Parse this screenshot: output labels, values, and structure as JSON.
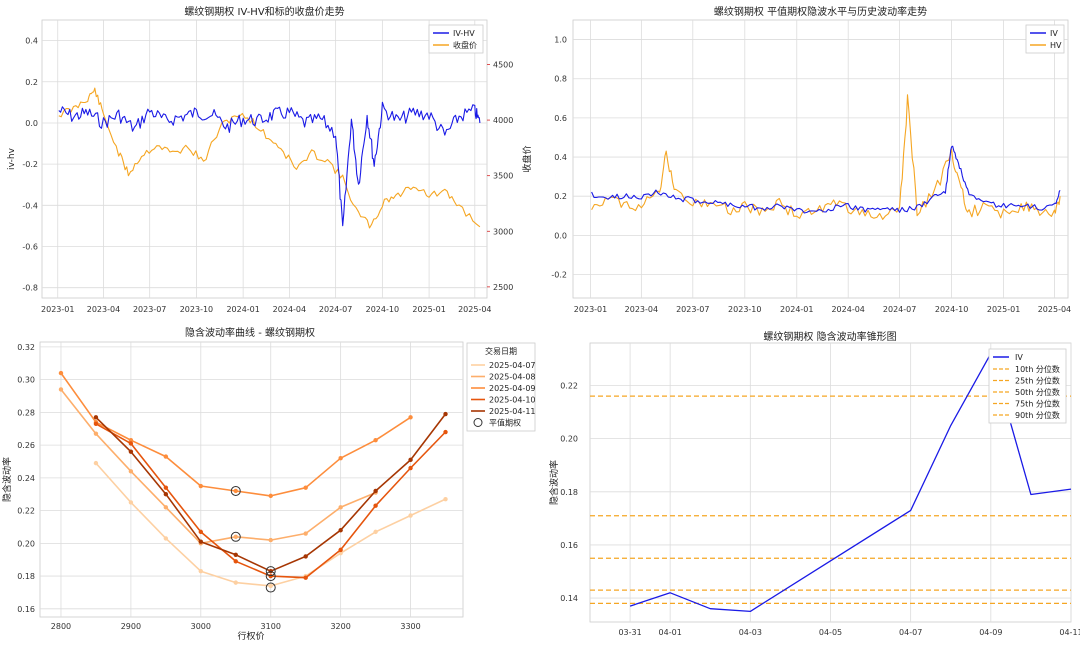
{
  "chart_data": [
    {
      "type": "line",
      "title": "螺纹钢期权 IV-HV和标的收盘价走势",
      "x_ticks": [
        "2023-01",
        "2023-04",
        "2023-07",
        "2023-10",
        "2024-01",
        "2024-04",
        "2024-07",
        "2024-10",
        "2025-01",
        "2025-04"
      ],
      "ylabel_left": "iv-hv",
      "ylabel_right": "收盘价",
      "ylim_left": [
        -0.85,
        0.5
      ],
      "y_ticks_left": [
        "0.4",
        "0.2",
        "0.0",
        "-0.2",
        "-0.4",
        "-0.6",
        "-0.8"
      ],
      "ylim_right": [
        2400,
        4900
      ],
      "y_ticks_right": [
        "4500",
        "4000",
        "3500",
        "3000",
        "2500"
      ],
      "grid": true,
      "legend_position": "top-right",
      "colors": {
        "iv_hv": "#1a1ae6",
        "close": "#f5a623",
        "left_axis": "#1f77b4",
        "right_axis": "#d62728"
      },
      "series": [
        {
          "name": "IV-HV",
          "axis": "left",
          "x": [
            "2023-01-03",
            "2023-02-01",
            "2023-03-01",
            "2023-04-01",
            "2023-05-01",
            "2023-06-01",
            "2023-07-01",
            "2023-08-01",
            "2023-09-01",
            "2023-10-01",
            "2023-11-01",
            "2023-12-01",
            "2024-01-01",
            "2024-02-01",
            "2024-03-01",
            "2024-04-01",
            "2024-05-01",
            "2024-06-01",
            "2024-07-01",
            "2024-07-15",
            "2024-08-01",
            "2024-08-15",
            "2024-09-01",
            "2024-09-15",
            "2024-10-01",
            "2024-11-01",
            "2024-12-01",
            "2025-01-01",
            "2025-02-01",
            "2025-03-01",
            "2025-04-01",
            "2025-04-11"
          ],
          "values": [
            0.06,
            0.03,
            0.05,
            0.0,
            0.04,
            -0.03,
            0.06,
            0.01,
            0.03,
            0.05,
            0.04,
            -0.02,
            0.02,
            0.01,
            0.04,
            0.05,
            0.0,
            0.02,
            -0.05,
            -0.52,
            0.02,
            -0.3,
            0.04,
            -0.2,
            0.07,
            0.01,
            0.05,
            0.04,
            -0.06,
            0.03,
            0.06,
            0.0
          ]
        },
        {
          "name": "收盘价",
          "axis": "right",
          "x": [
            "2023-01-03",
            "2023-02-01",
            "2023-03-01",
            "2023-03-15",
            "2023-04-01",
            "2023-05-01",
            "2023-05-20",
            "2023-06-15",
            "2023-07-15",
            "2023-08-15",
            "2023-09-15",
            "2023-10-15",
            "2023-11-15",
            "2023-12-15",
            "2024-01-15",
            "2024-02-15",
            "2024-03-15",
            "2024-04-15",
            "2024-05-15",
            "2024-06-15",
            "2024-07-15",
            "2024-08-15",
            "2024-09-10",
            "2024-10-05",
            "2024-11-01",
            "2024-12-01",
            "2025-01-01",
            "2025-02-01",
            "2025-03-01",
            "2025-04-11"
          ],
          "values": [
            4050,
            4100,
            4200,
            4270,
            4050,
            3700,
            3520,
            3680,
            3780,
            3700,
            3760,
            3620,
            3920,
            4050,
            4010,
            3860,
            3750,
            3560,
            3700,
            3640,
            3470,
            3150,
            3040,
            3280,
            3320,
            3420,
            3320,
            3350,
            3230,
            3040
          ]
        }
      ]
    },
    {
      "type": "line",
      "title": "螺纹钢期权 平值期权隐波水平与历史波动率走势",
      "x_ticks": [
        "2023-01",
        "2023-04",
        "2023-07",
        "2023-10",
        "2024-01",
        "2024-04",
        "2024-07",
        "2024-10",
        "2025-01",
        "2025-04"
      ],
      "ylim": [
        -0.32,
        1.1
      ],
      "y_ticks": [
        "1.0",
        "0.8",
        "0.6",
        "0.4",
        "0.2",
        "0.0",
        "-0.2"
      ],
      "grid": true,
      "legend_position": "top-right",
      "colors": {
        "iv": "#1a1ae6",
        "hv": "#f5a623"
      },
      "series": [
        {
          "name": "IV",
          "x": [
            "2023-01-03",
            "2023-02-01",
            "2023-03-01",
            "2023-04-01",
            "2023-05-01",
            "2023-06-01",
            "2023-07-01",
            "2023-08-01",
            "2023-09-01",
            "2023-10-01",
            "2023-11-01",
            "2023-12-01",
            "2024-01-01",
            "2024-02-01",
            "2024-03-01",
            "2024-04-01",
            "2024-05-01",
            "2024-06-01",
            "2024-07-01",
            "2024-08-01",
            "2024-09-01",
            "2024-09-20",
            "2024-10-01",
            "2024-10-15",
            "2024-11-01",
            "2024-12-01",
            "2025-01-01",
            "2025-02-01",
            "2025-03-01",
            "2025-04-01",
            "2025-04-11"
          ],
          "values": [
            0.21,
            0.19,
            0.2,
            0.2,
            0.22,
            0.19,
            0.18,
            0.17,
            0.16,
            0.15,
            0.14,
            0.15,
            0.13,
            0.12,
            0.14,
            0.15,
            0.13,
            0.14,
            0.13,
            0.14,
            0.2,
            0.22,
            0.46,
            0.35,
            0.2,
            0.16,
            0.15,
            0.15,
            0.14,
            0.15,
            0.23
          ]
        },
        {
          "name": "HV",
          "x": [
            "2023-01-03",
            "2023-02-01",
            "2023-03-01",
            "2023-04-01",
            "2023-05-01",
            "2023-05-15",
            "2023-06-01",
            "2023-07-01",
            "2023-08-01",
            "2023-09-01",
            "2023-10-01",
            "2023-11-01",
            "2023-12-01",
            "2024-01-01",
            "2024-02-01",
            "2024-03-01",
            "2024-04-01",
            "2024-05-01",
            "2024-06-01",
            "2024-07-01",
            "2024-07-15",
            "2024-08-01",
            "2024-09-01",
            "2024-10-01",
            "2024-10-15",
            "2024-11-01",
            "2024-12-01",
            "2025-01-01",
            "2025-02-01",
            "2025-03-01",
            "2025-04-01",
            "2025-04-11"
          ],
          "values": [
            0.16,
            0.18,
            0.17,
            0.15,
            0.2,
            0.41,
            0.22,
            0.16,
            0.18,
            0.13,
            0.15,
            0.12,
            0.17,
            0.1,
            0.12,
            0.16,
            0.14,
            0.12,
            0.1,
            0.12,
            0.69,
            0.13,
            0.22,
            0.42,
            0.25,
            0.12,
            0.14,
            0.11,
            0.15,
            0.12,
            0.1,
            0.2
          ]
        }
      ]
    },
    {
      "type": "line",
      "title": "隐含波动率曲线 - 螺纹钢期权",
      "xlabel": "行权价",
      "ylabel": "隐含波动率",
      "xlim": [
        2770,
        3375
      ],
      "ylim": [
        0.155,
        0.323
      ],
      "x_ticks": [
        2800,
        2900,
        3000,
        3100,
        3200,
        3300
      ],
      "y_ticks": [
        0.16,
        0.18,
        0.2,
        0.22,
        0.24,
        0.26,
        0.28,
        0.3,
        0.32
      ],
      "grid": true,
      "legend_title": "交易日期",
      "legend_position": "outside-right",
      "atm_label": "平值期权",
      "series": [
        {
          "name": "2025-04-07",
          "color": "#fdd0a2",
          "x": [
            2850,
            2900,
            2950,
            3000,
            3050,
            3100,
            3150,
            3200,
            3250,
            3300,
            3350
          ],
          "values": [
            0.249,
            0.225,
            0.203,
            0.183,
            0.176,
            0.174,
            0.18,
            0.194,
            0.207,
            0.217,
            0.227
          ]
        },
        {
          "name": "2025-04-08",
          "color": "#fdae6b",
          "x": [
            2800,
            2850,
            2900,
            2950,
            3000,
            3050,
            3100,
            3150,
            3200,
            3250
          ],
          "values": [
            0.294,
            0.267,
            0.244,
            0.222,
            0.2,
            0.204,
            0.202,
            0.206,
            0.222,
            0.231
          ]
        },
        {
          "name": "2025-04-09",
          "color": "#fd8d3c",
          "x": [
            2800,
            2850,
            2900,
            2950,
            3000,
            3050,
            3100,
            3150,
            3200,
            3250,
            3300
          ],
          "values": [
            0.304,
            0.274,
            0.263,
            0.253,
            0.235,
            0.232,
            0.229,
            0.234,
            0.252,
            0.263,
            0.277
          ]
        },
        {
          "name": "2025-04-10",
          "color": "#e6550d",
          "x": [
            2850,
            2900,
            2950,
            3000,
            3050,
            3100,
            3150,
            3200,
            3250,
            3300,
            3350
          ],
          "values": [
            0.273,
            0.261,
            0.234,
            0.207,
            0.189,
            0.18,
            0.179,
            0.196,
            0.223,
            0.246,
            0.268
          ]
        },
        {
          "name": "2025-04-11",
          "color": "#a63603",
          "x": [
            2850,
            2900,
            2950,
            3000,
            3050,
            3100,
            3150,
            3200,
            3250,
            3300,
            3350
          ],
          "values": [
            0.277,
            0.256,
            0.23,
            0.201,
            0.193,
            0.183,
            0.192,
            0.208,
            0.232,
            0.251,
            0.279
          ]
        }
      ],
      "atm_points": [
        {
          "x": 3050,
          "y": 0.232
        },
        {
          "x": 3050,
          "y": 0.204
        },
        {
          "x": 3100,
          "y": 0.183
        },
        {
          "x": 3100,
          "y": 0.18
        },
        {
          "x": 3100,
          "y": 0.173
        }
      ]
    },
    {
      "type": "line",
      "title": "螺纹钢期权 隐含波动率锥形图",
      "ylabel": "隐含波动率",
      "x": [
        "03-31",
        "04-01",
        "04-02",
        "04-03",
        "04-07",
        "04-08",
        "04-09",
        "04-10",
        "04-11"
      ],
      "x_ticks": [
        "03-31",
        "04-01",
        "04-03",
        "04-05",
        "04-07",
        "04-09",
        "04-11"
      ],
      "xlim": [
        "03-30",
        "04-11"
      ],
      "ylim": [
        0.131,
        0.236
      ],
      "y_ticks": [
        0.14,
        0.16,
        0.18,
        0.2,
        0.22
      ],
      "grid": true,
      "legend_position": "top-right",
      "series": [
        {
          "name": "IV",
          "color": "#1a1ae6",
          "x": [
            "03-31",
            "04-01",
            "04-02",
            "04-03",
            "04-07",
            "04-08",
            "04-09",
            "04-10",
            "04-11"
          ],
          "values": [
            0.137,
            0.142,
            0.136,
            0.135,
            0.173,
            0.205,
            0.232,
            0.179,
            0.181
          ]
        }
      ],
      "percentiles": [
        {
          "name": "10th 分位数",
          "value": 0.138,
          "color": "#f5a623"
        },
        {
          "name": "25th 分位数",
          "value": 0.143,
          "color": "#f5a623"
        },
        {
          "name": "50th 分位数",
          "value": 0.155,
          "color": "#f5a623"
        },
        {
          "name": "75th 分位数",
          "value": 0.171,
          "color": "#f5a623"
        },
        {
          "name": "90th 分位数",
          "value": 0.216,
          "color": "#f5a623"
        }
      ]
    }
  ]
}
